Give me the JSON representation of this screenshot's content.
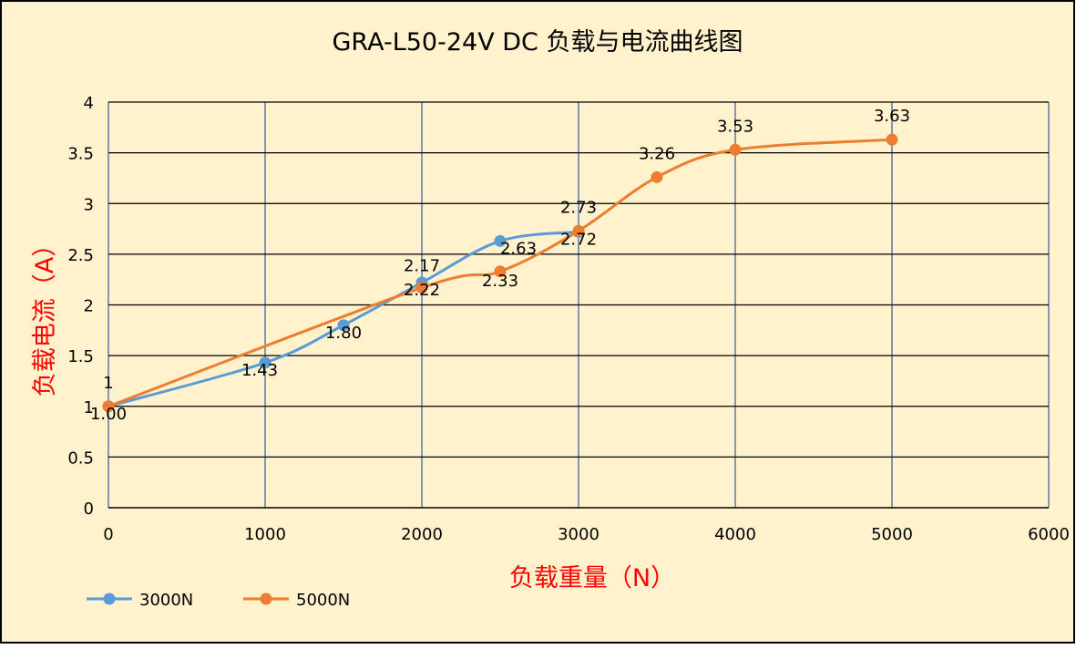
{
  "chart_data": {
    "type": "line",
    "title": "GRA-L50-24V DC 负载与电流曲线图",
    "xlabel": "负载重量（N）",
    "ylabel": "负载电流（A）",
    "xlim": [
      0,
      6000
    ],
    "ylim": [
      0,
      4
    ],
    "x_ticks": [
      "0",
      "1000",
      "2000",
      "3000",
      "4000",
      "5000",
      "6000"
    ],
    "y_ticks": [
      "0",
      "0.5",
      "1",
      "1.5",
      "2",
      "2.5",
      "3",
      "3.5",
      "4"
    ],
    "grid": true,
    "legend_position": "bottom-left",
    "series": [
      {
        "name": "3000N",
        "color": "#5b9bd5",
        "x": [
          0,
          1000,
          1500,
          2000,
          2500,
          3000
        ],
        "y": [
          1.0,
          1.43,
          1.8,
          2.22,
          2.63,
          2.72
        ],
        "labels": [
          "1.00",
          "1.43",
          "1.80",
          "2.22",
          "2.63",
          "2.72"
        ]
      },
      {
        "name": "5000N",
        "color": "#ed7d31",
        "x": [
          0,
          2000,
          2500,
          3000,
          3500,
          4000,
          5000
        ],
        "y": [
          1.0,
          2.17,
          2.33,
          2.73,
          3.26,
          3.53,
          3.63
        ],
        "labels": [
          "1",
          "2.17",
          "2.33",
          "2.73",
          "3.26",
          "3.53",
          "3.63"
        ]
      }
    ]
  },
  "colors": {
    "background": "#fff2cc",
    "grid_vertical": "#8497b0",
    "grid_horizontal": "#000000",
    "axis_title": "#ff0000"
  }
}
